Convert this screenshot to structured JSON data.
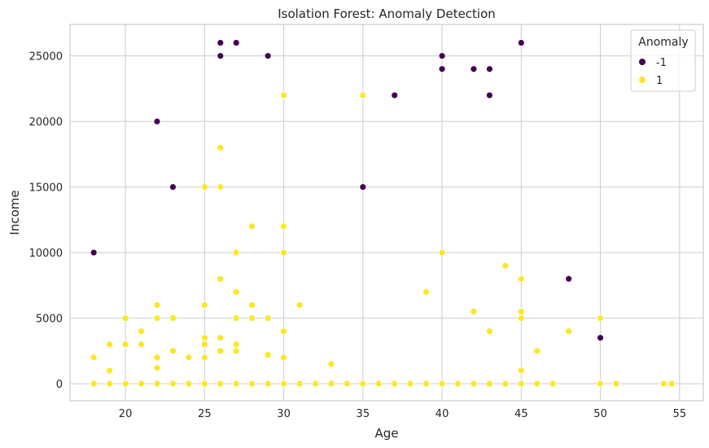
{
  "chart_data": {
    "type": "scatter",
    "title": "Isolation Forest: Anomaly Detection",
    "xlabel": "Age",
    "ylabel": "Income",
    "xlim": [
      16.5,
      56.5
    ],
    "ylim": [
      -1300,
      27400
    ],
    "x_ticks": [
      20,
      25,
      30,
      35,
      40,
      45,
      50,
      55
    ],
    "y_ticks": [
      0,
      5000,
      10000,
      15000,
      20000,
      25000
    ],
    "grid": true,
    "legend": {
      "title": "Anomaly",
      "placement": "top-right"
    },
    "series": [
      {
        "name": "-1",
        "color": "#440154",
        "points": [
          [
            18,
            10000
          ],
          [
            22,
            20000
          ],
          [
            23,
            15000
          ],
          [
            26,
            26000
          ],
          [
            26,
            25000
          ],
          [
            27,
            26000
          ],
          [
            29,
            25000
          ],
          [
            35,
            15000
          ],
          [
            37,
            22000
          ],
          [
            40,
            25000
          ],
          [
            40,
            24000
          ],
          [
            42,
            24000
          ],
          [
            43,
            24000
          ],
          [
            43,
            22000
          ],
          [
            45,
            26000
          ],
          [
            48,
            8000
          ],
          [
            50,
            3500
          ]
        ]
      },
      {
        "name": "1",
        "color": "#fde725",
        "points": [
          [
            18,
            2000
          ],
          [
            18,
            0
          ],
          [
            19,
            3000
          ],
          [
            19,
            1000
          ],
          [
            19,
            0
          ],
          [
            20,
            5000
          ],
          [
            20,
            3000
          ],
          [
            20,
            0
          ],
          [
            21,
            4000
          ],
          [
            21,
            3000
          ],
          [
            21,
            0
          ],
          [
            22,
            6000
          ],
          [
            22,
            5000
          ],
          [
            22,
            2000
          ],
          [
            22,
            1200
          ],
          [
            22,
            0
          ],
          [
            23,
            5000
          ],
          [
            23,
            2500
          ],
          [
            23,
            0
          ],
          [
            24,
            2000
          ],
          [
            24,
            0
          ],
          [
            25,
            15000
          ],
          [
            25,
            6000
          ],
          [
            25,
            3500
          ],
          [
            25,
            3000
          ],
          [
            25,
            2000
          ],
          [
            25,
            0
          ],
          [
            26,
            18000
          ],
          [
            26,
            15000
          ],
          [
            26,
            8000
          ],
          [
            26,
            3500
          ],
          [
            26,
            2500
          ],
          [
            26,
            0
          ],
          [
            27,
            10000
          ],
          [
            27,
            7000
          ],
          [
            27,
            5000
          ],
          [
            27,
            3000
          ],
          [
            27,
            2500
          ],
          [
            27,
            0
          ],
          [
            28,
            12000
          ],
          [
            28,
            6000
          ],
          [
            28,
            5000
          ],
          [
            28,
            0
          ],
          [
            29,
            5000
          ],
          [
            29,
            2200
          ],
          [
            29,
            0
          ],
          [
            30,
            22000
          ],
          [
            30,
            12000
          ],
          [
            30,
            10000
          ],
          [
            30,
            4000
          ],
          [
            30,
            2000
          ],
          [
            30,
            0
          ],
          [
            31,
            6000
          ],
          [
            31,
            0
          ],
          [
            32,
            0
          ],
          [
            33,
            1500
          ],
          [
            33,
            0
          ],
          [
            34,
            0
          ],
          [
            35,
            22000
          ],
          [
            35,
            0
          ],
          [
            36,
            0
          ],
          [
            37,
            0
          ],
          [
            38,
            0
          ],
          [
            39,
            7000
          ],
          [
            39,
            0
          ],
          [
            40,
            10000
          ],
          [
            40,
            0
          ],
          [
            41,
            0
          ],
          [
            42,
            5500
          ],
          [
            42,
            0
          ],
          [
            43,
            4000
          ],
          [
            43,
            0
          ],
          [
            44,
            9000
          ],
          [
            44,
            0
          ],
          [
            45,
            8000
          ],
          [
            45,
            5500
          ],
          [
            45,
            5000
          ],
          [
            45,
            1000
          ],
          [
            45,
            0
          ],
          [
            46,
            2500
          ],
          [
            46,
            0
          ],
          [
            47,
            0
          ],
          [
            48,
            4000
          ],
          [
            50,
            5000
          ],
          [
            50,
            0
          ],
          [
            51,
            0
          ],
          [
            54,
            0
          ],
          [
            54.5,
            0
          ]
        ]
      }
    ]
  }
}
